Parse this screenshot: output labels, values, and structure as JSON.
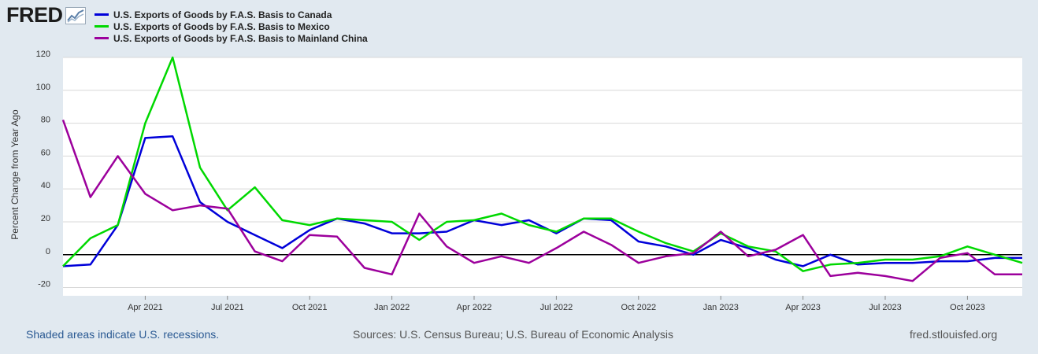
{
  "logo": {
    "text": "FRED"
  },
  "colors": {
    "canada": "#0000d9",
    "mexico": "#00d800",
    "china": "#9c009c",
    "zero_line": "#000000",
    "grid": "#d8d8d8"
  },
  "chart_data": {
    "type": "line",
    "title": "",
    "xlabel": "",
    "ylabel": "Percent Change from Year Ago",
    "ylim": [
      -25,
      120
    ],
    "yticks": [
      -20,
      0,
      20,
      40,
      60,
      80,
      100,
      120
    ],
    "ytick_labels": [
      "-20",
      "0",
      "20",
      "40",
      "60",
      "80",
      "100",
      "120"
    ],
    "x": [
      "2021-01",
      "2021-02",
      "2021-03",
      "2021-04",
      "2021-05",
      "2021-06",
      "2021-07",
      "2021-08",
      "2021-09",
      "2021-10",
      "2021-11",
      "2021-12",
      "2022-01",
      "2022-02",
      "2022-03",
      "2022-04",
      "2022-05",
      "2022-06",
      "2022-07",
      "2022-08",
      "2022-09",
      "2022-10",
      "2022-11",
      "2022-12",
      "2023-01",
      "2023-02",
      "2023-03",
      "2023-04",
      "2023-05",
      "2023-06",
      "2023-07",
      "2023-08",
      "2023-09",
      "2023-10",
      "2023-11",
      "2023-12"
    ],
    "xtick_labels": [
      {
        "index": 3,
        "label": "Apr 2021"
      },
      {
        "index": 6,
        "label": "Jul 2021"
      },
      {
        "index": 9,
        "label": "Oct 2021"
      },
      {
        "index": 12,
        "label": "Jan 2022"
      },
      {
        "index": 15,
        "label": "Apr 2022"
      },
      {
        "index": 18,
        "label": "Jul 2022"
      },
      {
        "index": 21,
        "label": "Oct 2022"
      },
      {
        "index": 24,
        "label": "Jan 2023"
      },
      {
        "index": 27,
        "label": "Apr 2023"
      },
      {
        "index": 30,
        "label": "Jul 2023"
      },
      {
        "index": 33,
        "label": "Oct 2023"
      }
    ],
    "series": [
      {
        "name": "U.S. Exports of Goods by F.A.S. Basis to Canada",
        "key": "canada",
        "values": [
          -7,
          -6,
          18,
          71,
          72,
          32,
          20,
          12,
          4,
          15,
          22,
          19,
          13,
          13,
          14,
          21,
          18,
          21,
          13,
          22,
          21,
          8,
          5,
          0,
          9,
          4,
          -3,
          -7,
          0,
          -6,
          -5,
          -5,
          -4,
          -4,
          -2,
          -2
        ]
      },
      {
        "name": "U.S. Exports of Goods by F.A.S. Basis to Mexico",
        "key": "mexico",
        "values": [
          -7,
          10,
          18,
          80,
          120,
          53,
          27,
          41,
          21,
          18,
          22,
          21,
          20,
          9,
          20,
          21,
          25,
          18,
          14,
          22,
          22,
          14,
          7,
          2,
          13,
          5,
          2,
          -10,
          -6,
          -5,
          -3,
          -3,
          -1,
          5,
          0,
          -5
        ]
      },
      {
        "name": "U.S. Exports of Goods by F.A.S. Basis to Mainland China",
        "key": "china",
        "values": [
          82,
          35,
          60,
          37,
          27,
          30,
          28,
          2,
          -4,
          12,
          11,
          -8,
          -12,
          25,
          5,
          -5,
          -1,
          -5,
          4,
          14,
          6,
          -5,
          -1,
          1,
          14,
          -1,
          3,
          12,
          -13,
          -11,
          -13,
          -16,
          -2,
          1,
          -12,
          -12
        ]
      }
    ]
  },
  "footer": {
    "recession_note": "Shaded areas indicate U.S. recessions.",
    "sources": "Sources: U.S. Census Bureau; U.S. Bureau of Economic Analysis",
    "site": "fred.stlouisfed.org"
  }
}
